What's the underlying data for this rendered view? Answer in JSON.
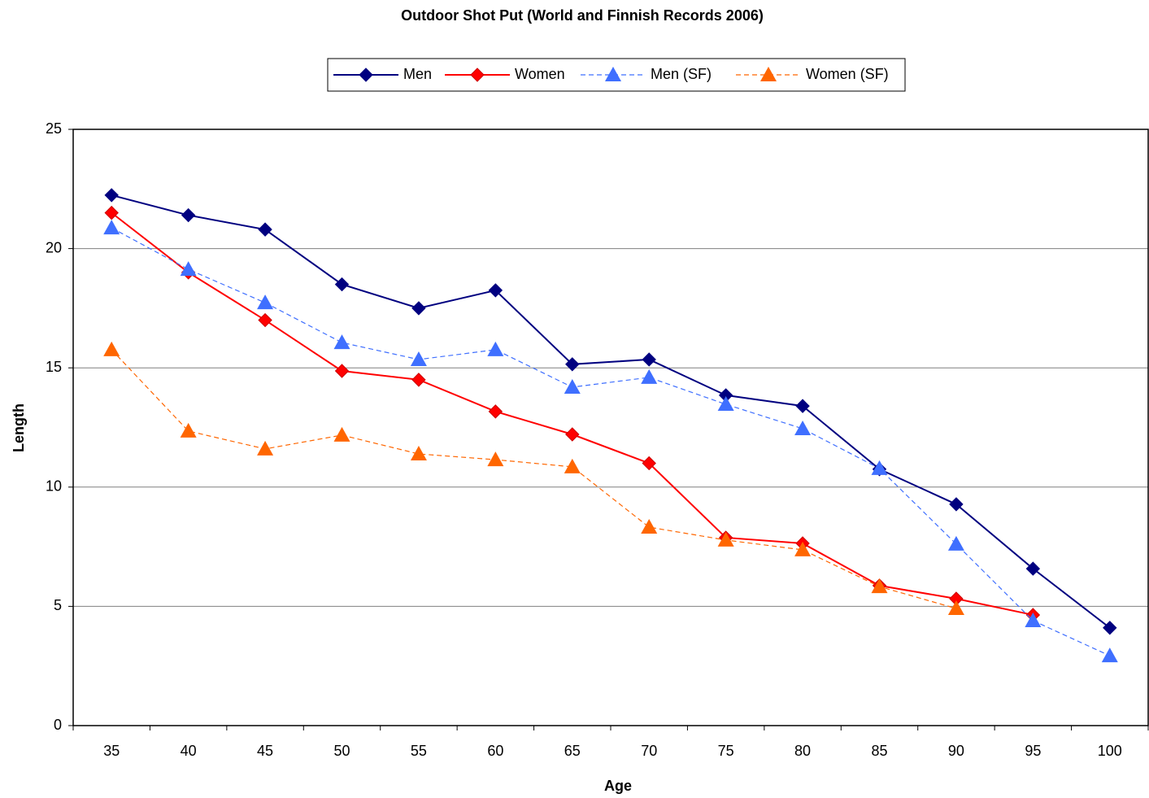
{
  "chart_data": {
    "type": "line",
    "title": "Outdoor Shot Put (World and Finnish Records 2006)",
    "x_label": "Age",
    "y_label": "Length",
    "categories": [
      "35",
      "40",
      "45",
      "50",
      "55",
      "60",
      "65",
      "70",
      "75",
      "80",
      "85",
      "90",
      "95",
      "100"
    ],
    "series": [
      {
        "name": "Men",
        "color": "#000080",
        "marker": "diamond",
        "line_style": "solid",
        "values": [
          22.24,
          21.4,
          20.8,
          18.5,
          17.5,
          18.25,
          15.15,
          15.35,
          13.85,
          13.4,
          10.75,
          9.28,
          6.58,
          4.1
        ]
      },
      {
        "name": "Women",
        "color": "#ff0000",
        "marker": "diamond",
        "line_style": "solid",
        "values": [
          21.5,
          19.0,
          17.0,
          14.87,
          14.5,
          13.17,
          12.21,
          11.0,
          7.88,
          7.64,
          5.87,
          5.32,
          4.64,
          null
        ]
      },
      {
        "name": "Men (SF)",
        "color": "#3f6fff",
        "marker": "triangle",
        "line_style": "dashed",
        "values": [
          20.87,
          19.13,
          17.73,
          16.06,
          15.35,
          15.76,
          14.19,
          14.6,
          13.47,
          12.45,
          10.78,
          7.61,
          4.4,
          2.93
        ]
      },
      {
        "name": "Women (SF)",
        "color": "#ff6600",
        "marker": "triangle",
        "line_style": "dashed",
        "values": [
          15.76,
          12.35,
          11.6,
          12.18,
          11.39,
          11.15,
          10.85,
          8.32,
          7.78,
          7.37,
          5.83,
          4.91,
          null,
          null
        ]
      }
    ],
    "ylim": [
      0,
      25
    ],
    "yticks": [
      0,
      5,
      10,
      15,
      20,
      25
    ],
    "grid": true,
    "legend": "top"
  }
}
